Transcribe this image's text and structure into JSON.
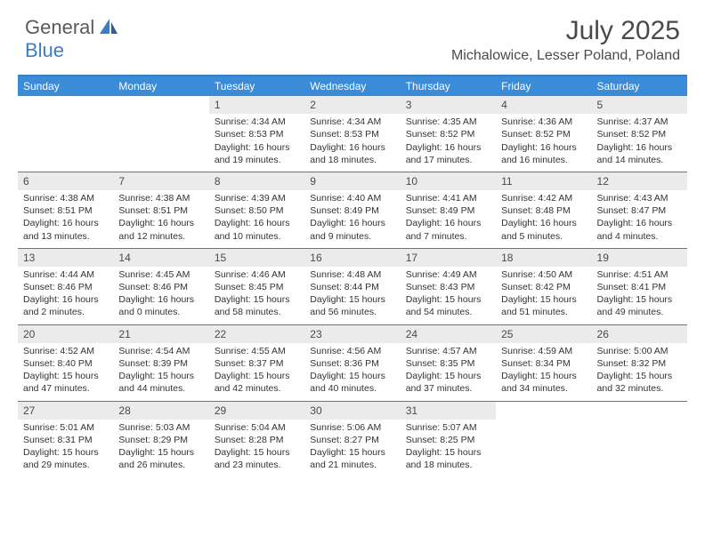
{
  "logo": {
    "part1": "General",
    "part2": "Blue"
  },
  "title": "July 2025",
  "location": "Michalowice, Lesser Poland, Poland",
  "colors": {
    "header_bar": "#3a8bd8",
    "accent_line": "#3a7fc4",
    "daynum_bg": "#ebebeb",
    "text": "#333333",
    "logo_gray": "#5a5a5a",
    "logo_blue": "#3a7fc4"
  },
  "daysOfWeek": [
    "Sunday",
    "Monday",
    "Tuesday",
    "Wednesday",
    "Thursday",
    "Friday",
    "Saturday"
  ],
  "weeks": [
    [
      null,
      null,
      {
        "num": "1",
        "sunrise": "Sunrise: 4:34 AM",
        "sunset": "Sunset: 8:53 PM",
        "day1": "Daylight: 16 hours",
        "day2": "and 19 minutes."
      },
      {
        "num": "2",
        "sunrise": "Sunrise: 4:34 AM",
        "sunset": "Sunset: 8:53 PM",
        "day1": "Daylight: 16 hours",
        "day2": "and 18 minutes."
      },
      {
        "num": "3",
        "sunrise": "Sunrise: 4:35 AM",
        "sunset": "Sunset: 8:52 PM",
        "day1": "Daylight: 16 hours",
        "day2": "and 17 minutes."
      },
      {
        "num": "4",
        "sunrise": "Sunrise: 4:36 AM",
        "sunset": "Sunset: 8:52 PM",
        "day1": "Daylight: 16 hours",
        "day2": "and 16 minutes."
      },
      {
        "num": "5",
        "sunrise": "Sunrise: 4:37 AM",
        "sunset": "Sunset: 8:52 PM",
        "day1": "Daylight: 16 hours",
        "day2": "and 14 minutes."
      }
    ],
    [
      {
        "num": "6",
        "sunrise": "Sunrise: 4:38 AM",
        "sunset": "Sunset: 8:51 PM",
        "day1": "Daylight: 16 hours",
        "day2": "and 13 minutes."
      },
      {
        "num": "7",
        "sunrise": "Sunrise: 4:38 AM",
        "sunset": "Sunset: 8:51 PM",
        "day1": "Daylight: 16 hours",
        "day2": "and 12 minutes."
      },
      {
        "num": "8",
        "sunrise": "Sunrise: 4:39 AM",
        "sunset": "Sunset: 8:50 PM",
        "day1": "Daylight: 16 hours",
        "day2": "and 10 minutes."
      },
      {
        "num": "9",
        "sunrise": "Sunrise: 4:40 AM",
        "sunset": "Sunset: 8:49 PM",
        "day1": "Daylight: 16 hours",
        "day2": "and 9 minutes."
      },
      {
        "num": "10",
        "sunrise": "Sunrise: 4:41 AM",
        "sunset": "Sunset: 8:49 PM",
        "day1": "Daylight: 16 hours",
        "day2": "and 7 minutes."
      },
      {
        "num": "11",
        "sunrise": "Sunrise: 4:42 AM",
        "sunset": "Sunset: 8:48 PM",
        "day1": "Daylight: 16 hours",
        "day2": "and 5 minutes."
      },
      {
        "num": "12",
        "sunrise": "Sunrise: 4:43 AM",
        "sunset": "Sunset: 8:47 PM",
        "day1": "Daylight: 16 hours",
        "day2": "and 4 minutes."
      }
    ],
    [
      {
        "num": "13",
        "sunrise": "Sunrise: 4:44 AM",
        "sunset": "Sunset: 8:46 PM",
        "day1": "Daylight: 16 hours",
        "day2": "and 2 minutes."
      },
      {
        "num": "14",
        "sunrise": "Sunrise: 4:45 AM",
        "sunset": "Sunset: 8:46 PM",
        "day1": "Daylight: 16 hours",
        "day2": "and 0 minutes."
      },
      {
        "num": "15",
        "sunrise": "Sunrise: 4:46 AM",
        "sunset": "Sunset: 8:45 PM",
        "day1": "Daylight: 15 hours",
        "day2": "and 58 minutes."
      },
      {
        "num": "16",
        "sunrise": "Sunrise: 4:48 AM",
        "sunset": "Sunset: 8:44 PM",
        "day1": "Daylight: 15 hours",
        "day2": "and 56 minutes."
      },
      {
        "num": "17",
        "sunrise": "Sunrise: 4:49 AM",
        "sunset": "Sunset: 8:43 PM",
        "day1": "Daylight: 15 hours",
        "day2": "and 54 minutes."
      },
      {
        "num": "18",
        "sunrise": "Sunrise: 4:50 AM",
        "sunset": "Sunset: 8:42 PM",
        "day1": "Daylight: 15 hours",
        "day2": "and 51 minutes."
      },
      {
        "num": "19",
        "sunrise": "Sunrise: 4:51 AM",
        "sunset": "Sunset: 8:41 PM",
        "day1": "Daylight: 15 hours",
        "day2": "and 49 minutes."
      }
    ],
    [
      {
        "num": "20",
        "sunrise": "Sunrise: 4:52 AM",
        "sunset": "Sunset: 8:40 PM",
        "day1": "Daylight: 15 hours",
        "day2": "and 47 minutes."
      },
      {
        "num": "21",
        "sunrise": "Sunrise: 4:54 AM",
        "sunset": "Sunset: 8:39 PM",
        "day1": "Daylight: 15 hours",
        "day2": "and 44 minutes."
      },
      {
        "num": "22",
        "sunrise": "Sunrise: 4:55 AM",
        "sunset": "Sunset: 8:37 PM",
        "day1": "Daylight: 15 hours",
        "day2": "and 42 minutes."
      },
      {
        "num": "23",
        "sunrise": "Sunrise: 4:56 AM",
        "sunset": "Sunset: 8:36 PM",
        "day1": "Daylight: 15 hours",
        "day2": "and 40 minutes."
      },
      {
        "num": "24",
        "sunrise": "Sunrise: 4:57 AM",
        "sunset": "Sunset: 8:35 PM",
        "day1": "Daylight: 15 hours",
        "day2": "and 37 minutes."
      },
      {
        "num": "25",
        "sunrise": "Sunrise: 4:59 AM",
        "sunset": "Sunset: 8:34 PM",
        "day1": "Daylight: 15 hours",
        "day2": "and 34 minutes."
      },
      {
        "num": "26",
        "sunrise": "Sunrise: 5:00 AM",
        "sunset": "Sunset: 8:32 PM",
        "day1": "Daylight: 15 hours",
        "day2": "and 32 minutes."
      }
    ],
    [
      {
        "num": "27",
        "sunrise": "Sunrise: 5:01 AM",
        "sunset": "Sunset: 8:31 PM",
        "day1": "Daylight: 15 hours",
        "day2": "and 29 minutes."
      },
      {
        "num": "28",
        "sunrise": "Sunrise: 5:03 AM",
        "sunset": "Sunset: 8:29 PM",
        "day1": "Daylight: 15 hours",
        "day2": "and 26 minutes."
      },
      {
        "num": "29",
        "sunrise": "Sunrise: 5:04 AM",
        "sunset": "Sunset: 8:28 PM",
        "day1": "Daylight: 15 hours",
        "day2": "and 23 minutes."
      },
      {
        "num": "30",
        "sunrise": "Sunrise: 5:06 AM",
        "sunset": "Sunset: 8:27 PM",
        "day1": "Daylight: 15 hours",
        "day2": "and 21 minutes."
      },
      {
        "num": "31",
        "sunrise": "Sunrise: 5:07 AM",
        "sunset": "Sunset: 8:25 PM",
        "day1": "Daylight: 15 hours",
        "day2": "and 18 minutes."
      },
      null,
      null
    ]
  ]
}
